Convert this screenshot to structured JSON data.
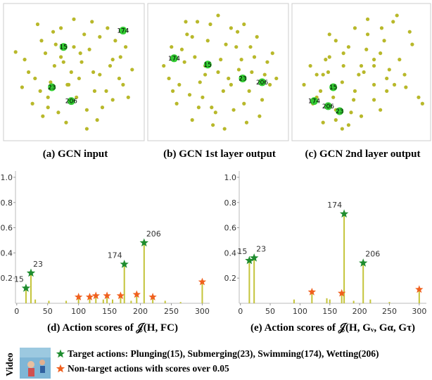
{
  "chart_data": [
    {
      "type": "scatter",
      "caption": "(a) GCN input",
      "color": "#b8b82a",
      "xlim": [
        0,
        100
      ],
      "ylim": [
        0,
        100
      ],
      "x": [
        12,
        20,
        25,
        30,
        35,
        40,
        45,
        50,
        55,
        60,
        65,
        70,
        75,
        80,
        85,
        90,
        18,
        28,
        38,
        48,
        58,
        68,
        78,
        88,
        22,
        32,
        42,
        52,
        62,
        72,
        82,
        15,
        26,
        36,
        46,
        56,
        66,
        76,
        86,
        44,
        54,
        64,
        34,
        24,
        50,
        60,
        70,
        40,
        30,
        80,
        5,
        95,
        10,
        92
      ],
      "y": [
        60,
        45,
        75,
        30,
        55,
        85,
        40,
        92,
        65,
        20,
        50,
        78,
        35,
        60,
        45,
        70,
        25,
        65,
        18,
        50,
        80,
        12,
        55,
        40,
        88,
        42,
        58,
        30,
        68,
        22,
        75,
        50,
        15,
        72,
        40,
        58,
        35,
        85,
        62,
        10,
        45,
        90,
        82,
        35,
        70,
        5,
        48,
        62,
        22,
        28,
        66,
        52,
        38,
        30
      ],
      "highlight": {
        "labels": [
          "15",
          "23",
          "174",
          "206"
        ],
        "x": [
          42,
          33,
          88,
          48
        ],
        "y": [
          70,
          38,
          83,
          27
        ],
        "color": "#33cc33"
      }
    },
    {
      "type": "scatter",
      "caption": "(b) GCN 1st layer output",
      "color": "#b8b82a",
      "xlim": [
        0,
        100
      ],
      "ylim": [
        0,
        100
      ],
      "x": [
        8,
        14,
        20,
        26,
        32,
        38,
        44,
        50,
        56,
        62,
        68,
        74,
        80,
        86,
        92,
        12,
        18,
        24,
        30,
        36,
        42,
        48,
        54,
        60,
        66,
        72,
        78,
        84,
        90,
        22,
        28,
        34,
        40,
        46,
        52,
        58,
        64,
        70,
        76,
        82,
        30,
        50,
        70,
        45,
        55,
        60,
        40,
        25,
        35,
        65,
        15,
        88,
        75,
        95
      ],
      "y": [
        55,
        70,
        40,
        80,
        62,
        30,
        88,
        50,
        72,
        20,
        60,
        35,
        78,
        48,
        65,
        45,
        25,
        58,
        12,
        42,
        75,
        18,
        35,
        85,
        52,
        10,
        62,
        28,
        40,
        68,
        32,
        90,
        55,
        8,
        60,
        45,
        70,
        25,
        50,
        15,
        78,
        95,
        88,
        22,
        5,
        40,
        48,
        90,
        22,
        82,
        35,
        58,
        70,
        45
      ],
      "highlight": {
        "labels": [
          "15",
          "174",
          "23",
          "206"
        ],
        "x": [
          42,
          16,
          69,
          84
        ],
        "y": [
          56,
          61,
          45,
          42
        ],
        "color": "#33cc33"
      }
    },
    {
      "type": "scatter",
      "caption": "(c) GCN 2nd layer output",
      "color": "#b8b82a",
      "xlim": [
        0,
        100
      ],
      "ylim": [
        0,
        100
      ],
      "x": [
        5,
        10,
        15,
        20,
        25,
        30,
        35,
        40,
        45,
        50,
        55,
        60,
        65,
        70,
        75,
        80,
        85,
        90,
        95,
        12,
        18,
        24,
        30,
        36,
        42,
        48,
        54,
        60,
        66,
        72,
        78,
        84,
        20,
        28,
        36,
        44,
        52,
        60,
        68,
        76,
        40,
        50,
        60,
        70,
        30,
        22,
        15,
        45,
        55,
        65,
        98,
        88,
        35,
        25
      ],
      "y": [
        40,
        55,
        30,
        48,
        62,
        20,
        42,
        70,
        35,
        55,
        80,
        28,
        65,
        45,
        90,
        60,
        38,
        72,
        30,
        25,
        35,
        50,
        12,
        55,
        18,
        48,
        68,
        40,
        85,
        52,
        95,
        48,
        10,
        30,
        65,
        28,
        50,
        60,
        75,
        40,
        8,
        15,
        55,
        35,
        75,
        60,
        48,
        85,
        92,
        20,
        25,
        82,
        5,
        80
      ],
      "highlight": {
        "labels": [
          "15",
          "174",
          "206",
          "23"
        ],
        "x": [
          28,
          13,
          24,
          33
        ],
        "y": [
          38,
          27,
          23,
          19
        ],
        "color": "#33cc33"
      }
    },
    {
      "type": "stem",
      "caption": "(d) Action scores of 𝒥(H, FC)",
      "color": "#c4c43a",
      "xlim": [
        -2,
        312
      ],
      "ylim": [
        0,
        1.05
      ],
      "xticks": [
        0,
        50,
        100,
        150,
        200,
        250,
        300
      ],
      "yticks": [
        0.2,
        0.4,
        0.6,
        0.8,
        {
          "value": 1,
          "label": "1.0"
        }
      ],
      "x": [
        30,
        52,
        80,
        140,
        155,
        185,
        240,
        265
      ],
      "values": [
        0.03,
        0.02,
        0.02,
        0.03,
        0.03,
        0.02,
        0.02,
        0.01
      ],
      "target": {
        "labels": [
          "15",
          "23",
          "174",
          "206"
        ],
        "x": [
          15,
          23,
          174,
          206
        ],
        "values": [
          0.12,
          0.24,
          0.31,
          0.48
        ]
      },
      "other": {
        "x": [
          100,
          118,
          128,
          146,
          168,
          194,
          220,
          300
        ],
        "values": [
          0.05,
          0.05,
          0.06,
          0.06,
          0.06,
          0.07,
          0.05,
          0.17
        ]
      }
    },
    {
      "type": "stem",
      "caption": "(e) Action scores of 𝒥(H, Gᵥ, Gα, Gτ)",
      "color": "#c4c43a",
      "xlim": [
        -2,
        312
      ],
      "ylim": [
        0,
        1.05
      ],
      "xticks": [
        0,
        50,
        100,
        150,
        200,
        250,
        300
      ],
      "yticks": [
        0.2,
        0.4,
        0.6,
        0.8,
        {
          "value": 1,
          "label": "1.0"
        }
      ],
      "x": [
        90,
        145,
        150,
        190,
        218,
        250
      ],
      "values": [
        0.03,
        0.04,
        0.03,
        0.02,
        0.03,
        0.01
      ],
      "target": {
        "labels": [
          "15",
          "23",
          "174",
          "206"
        ],
        "x": [
          15,
          23,
          174,
          206
        ],
        "values": [
          0.34,
          0.36,
          0.71,
          0.32
        ]
      },
      "other": {
        "x": [
          120,
          170,
          300
        ],
        "values": [
          0.09,
          0.08,
          0.11
        ]
      }
    }
  ],
  "legend": {
    "title": "Video",
    "items": [
      {
        "label": "Target actions: Plunging(15), Submerging(23), Swimming(174), Wetting(206)",
        "color": "#1e8c2e"
      },
      {
        "label": "Non-target actions with scores over 0.05",
        "color": "#f0601e"
      }
    ]
  }
}
